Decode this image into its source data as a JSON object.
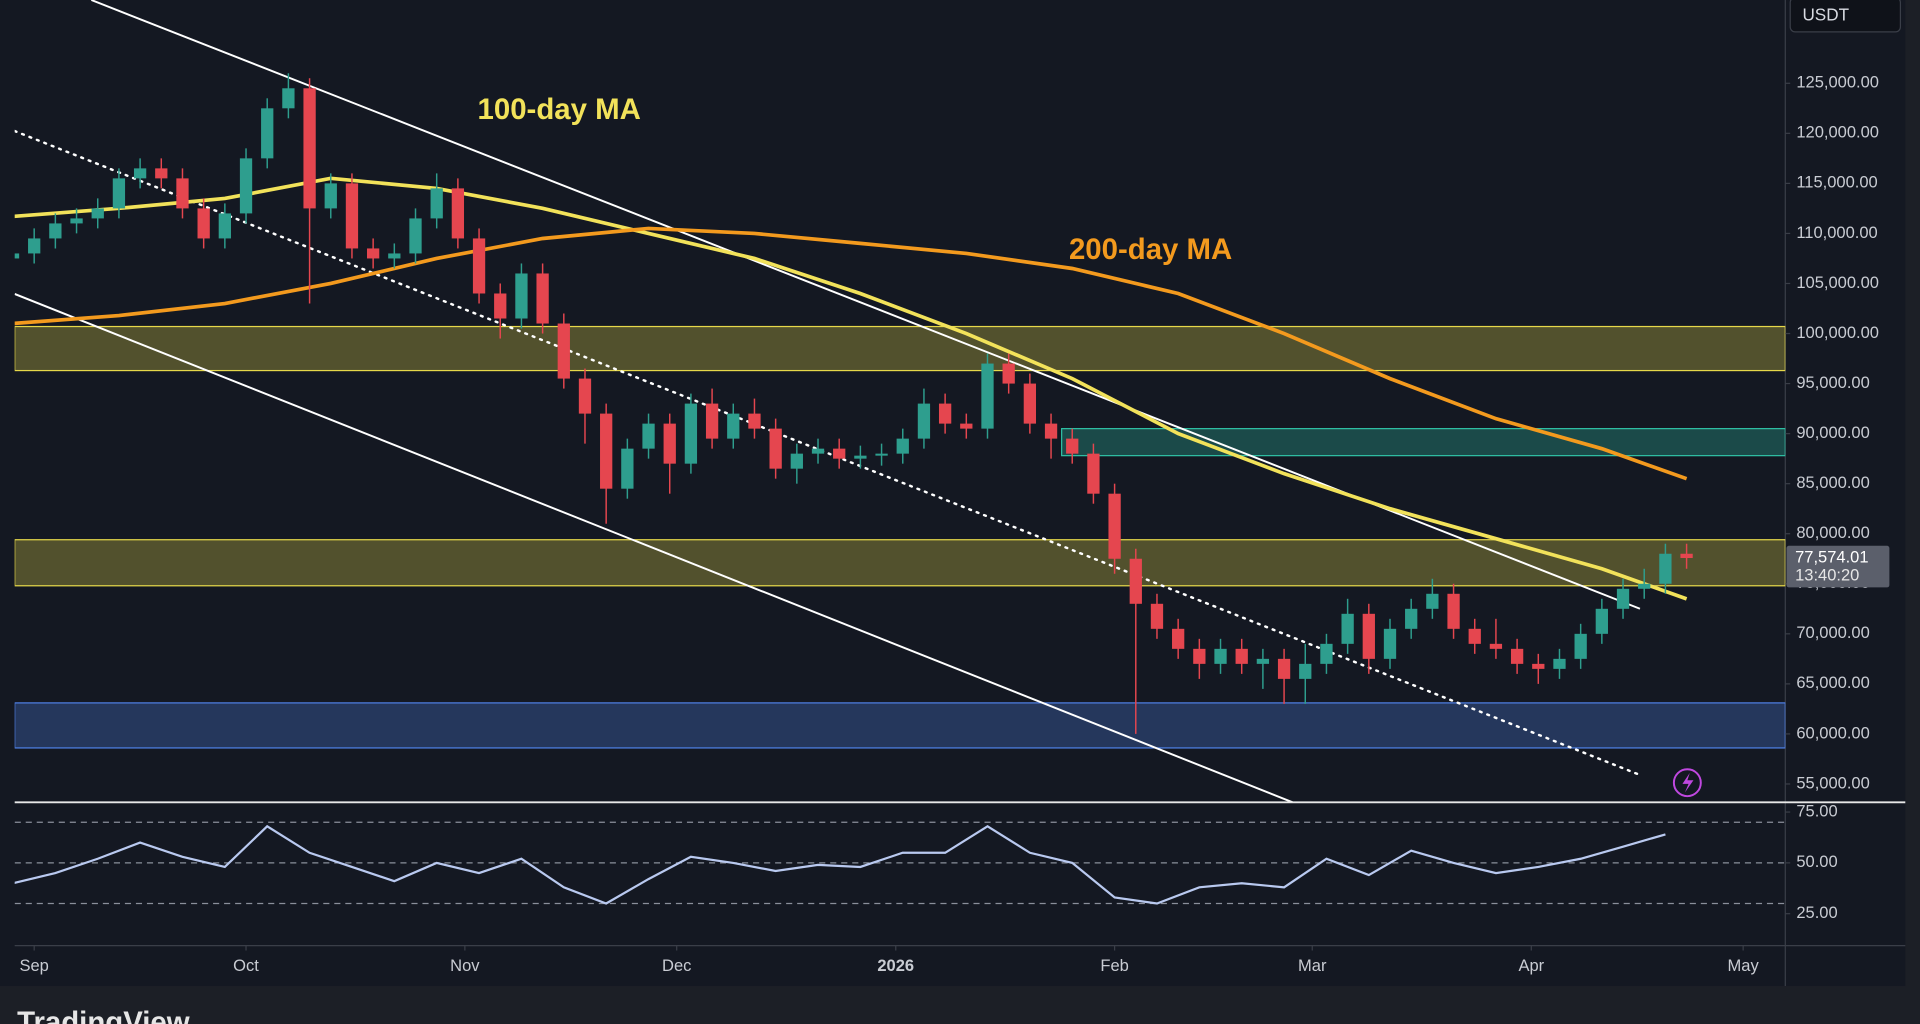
{
  "header": {
    "currency": "USDT",
    "watermark": "TradingView"
  },
  "chart_data": [
    {
      "type": "candlestick",
      "x": [
        0,
        1,
        2,
        3,
        4,
        5,
        6,
        7,
        8,
        9,
        10,
        11,
        12,
        13,
        14,
        15,
        16,
        17,
        18,
        19,
        20,
        21,
        22,
        23,
        24,
        25,
        26,
        27,
        28,
        29,
        30,
        31,
        32,
        33,
        34,
        35,
        36,
        37,
        38,
        39,
        40,
        41,
        42,
        43,
        44,
        45,
        46,
        47,
        48,
        49,
        50,
        51,
        52,
        53,
        54,
        55,
        56,
        57,
        58,
        59,
        60,
        61,
        62,
        63,
        64,
        65,
        66,
        67,
        68,
        69,
        70,
        71,
        72,
        73,
        74,
        75,
        76,
        77,
        78,
        79
      ],
      "open": [
        107500,
        108000,
        109500,
        111000,
        111500,
        112500,
        115500,
        116500,
        115500,
        112500,
        109500,
        112000,
        117500,
        122500,
        124500,
        112500,
        115000,
        108500,
        107500,
        108000,
        111500,
        114500,
        109500,
        104000,
        101500,
        106000,
        101000,
        95500,
        92000,
        84500,
        88500,
        91000,
        87000,
        93000,
        89500,
        92000,
        90500,
        86500,
        88000,
        88500,
        87500,
        87800,
        88000,
        89500,
        93000,
        91000,
        90500,
        97000,
        95000,
        91000,
        89500,
        88000,
        84000,
        77500,
        73000,
        70500,
        68500,
        67000,
        68500,
        67000,
        67500,
        65500,
        67000,
        69000,
        72000,
        67500,
        70500,
        72500,
        74000,
        70500,
        69000,
        68500,
        67000,
        66500,
        67500,
        70000,
        72500,
        74500,
        75000,
        78000
      ],
      "high": [
        109000,
        110500,
        112000,
        112500,
        113500,
        116500,
        117500,
        117500,
        116500,
        113500,
        113000,
        118500,
        123500,
        126000,
        125500,
        116000,
        116000,
        109500,
        109000,
        112500,
        116000,
        115500,
        110500,
        105000,
        107000,
        107000,
        102000,
        96500,
        93000,
        89500,
        92000,
        92000,
        94000,
        94500,
        93000,
        93500,
        91500,
        89000,
        89500,
        89500,
        88800,
        89000,
        90500,
        94500,
        94000,
        92000,
        98000,
        98000,
        96000,
        92000,
        90500,
        89000,
        85000,
        78500,
        74000,
        71500,
        69500,
        69500,
        69500,
        68500,
        68500,
        69000,
        70000,
        73500,
        73000,
        71500,
        73500,
        75500,
        75000,
        71500,
        71500,
        69500,
        68000,
        68500,
        71000,
        73500,
        75500,
        76500,
        79000,
        79000
      ],
      "low": [
        106500,
        107000,
        108500,
        110000,
        110500,
        111500,
        114500,
        114500,
        111500,
        108500,
        108500,
        111000,
        116500,
        121500,
        103000,
        111500,
        107500,
        106500,
        106500,
        107000,
        110500,
        108500,
        103000,
        99500,
        100500,
        100000,
        94500,
        89000,
        81000,
        83500,
        87500,
        84000,
        86000,
        88500,
        88500,
        89500,
        85500,
        85000,
        87000,
        86500,
        86500,
        86800,
        87000,
        88500,
        90000,
        89500,
        89500,
        94000,
        90000,
        87500,
        87000,
        83000,
        76000,
        60000,
        69500,
        67500,
        65500,
        66000,
        66000,
        64500,
        63000,
        63000,
        66000,
        68000,
        66000,
        66500,
        69500,
        71500,
        69500,
        68000,
        67500,
        66000,
        65000,
        65500,
        66500,
        69000,
        71500,
        73500,
        74000,
        76500
      ],
      "close": [
        108000,
        109500,
        111000,
        111500,
        112500,
        115500,
        116500,
        115500,
        112500,
        109500,
        112000,
        117500,
        122500,
        124500,
        112500,
        115000,
        108500,
        107500,
        108000,
        111500,
        114500,
        109500,
        104000,
        101500,
        106000,
        101000,
        95500,
        92000,
        84500,
        88500,
        91000,
        87000,
        93000,
        89500,
        92000,
        90500,
        86500,
        88000,
        88500,
        87500,
        87800,
        88000,
        89500,
        93000,
        91000,
        90500,
        97000,
        95000,
        91000,
        89500,
        88000,
        84000,
        77500,
        73000,
        70500,
        68500,
        67000,
        68500,
        67000,
        67500,
        65500,
        67000,
        69000,
        72000,
        67500,
        70500,
        72500,
        74000,
        70500,
        69000,
        68500,
        67000,
        66500,
        67500,
        70000,
        72500,
        74500,
        75000,
        78000,
        77574.01
      ],
      "up_color": "#2e9e8e",
      "down_color": "#e5464f",
      "xlim": [
        0.08,
        83.66
      ],
      "xticks": [
        {
          "value": 1,
          "label": "Sep"
        },
        {
          "value": 11,
          "label": "Oct"
        },
        {
          "value": 21.33,
          "label": "Nov"
        },
        {
          "value": 31.33,
          "label": "Dec"
        },
        {
          "value": 41.67,
          "label": "2026"
        },
        {
          "value": 52,
          "label": "Feb"
        },
        {
          "value": 61.33,
          "label": "Mar"
        },
        {
          "value": 71.67,
          "label": "Apr"
        },
        {
          "value": 81.67,
          "label": "May"
        }
      ],
      "ylim": [
        53170,
        133320
      ],
      "yticks": [
        {
          "value": 55000,
          "label": "55,000.00"
        },
        {
          "value": 60000,
          "label": "60,000.00"
        },
        {
          "value": 65000,
          "label": "65,000.00"
        },
        {
          "value": 70000,
          "label": "70,000.00"
        },
        {
          "value": 75000,
          "label": "75,000.00"
        },
        {
          "value": 80000,
          "label": "80,000.00"
        },
        {
          "value": 85000,
          "label": "85,000.00"
        },
        {
          "value": 90000,
          "label": "90,000.00"
        },
        {
          "value": 95000,
          "label": "95,000.00"
        },
        {
          "value": 100000,
          "label": "100,000.00"
        },
        {
          "value": 105000,
          "label": "105,000.00"
        },
        {
          "value": 110000,
          "label": "110,000.00"
        },
        {
          "value": 115000,
          "label": "115,000.00"
        },
        {
          "value": 120000,
          "label": "120,000.00"
        },
        {
          "value": 125000,
          "label": "125,000.00"
        }
      ],
      "lines": [
        {
          "name": "100-day MA",
          "color": "#f2e25a",
          "x": [
            0,
            5,
            10,
            15,
            20,
            25,
            30,
            35,
            40,
            45,
            50,
            55,
            60,
            65,
            70,
            75,
            79
          ],
          "values": [
            111700,
            112500,
            113500,
            115500,
            114500,
            112500,
            110000,
            107500,
            104000,
            100000,
            95500,
            90000,
            86000,
            82500,
            79500,
            76500,
            73500
          ]
        },
        {
          "name": "200-day MA",
          "color": "#f39a1e",
          "x": [
            0,
            5,
            10,
            15,
            20,
            25,
            30,
            35,
            40,
            45,
            50,
            55,
            60,
            65,
            70,
            75,
            79
          ],
          "values": [
            101000,
            101800,
            103000,
            105000,
            107500,
            109500,
            110500,
            110000,
            109000,
            108000,
            106500,
            104000,
            100000,
            95500,
            91500,
            88500,
            85500
          ]
        }
      ],
      "zones": [
        {
          "lo": 96300,
          "hi": 100700,
          "color": "#e6d84a"
        },
        {
          "lo": 74800,
          "hi": 79400,
          "color": "#e6d84a"
        },
        {
          "lo": 87800,
          "hi": 90500,
          "from": 49.5,
          "color": "#2fc0a5"
        },
        {
          "lo": 58600,
          "hi": 63100,
          "color": "#4f80e6"
        }
      ],
      "trendlines": [
        {
          "x": [
            3.7,
            76.8
          ],
          "values": [
            133320,
            72500
          ],
          "color": "#ffffff"
        },
        {
          "x": [
            0.08,
            60.4
          ],
          "values": [
            103950,
            53170
          ],
          "color": "#ffffff"
        },
        {
          "x": [
            0.08,
            76.7
          ],
          "values": [
            120230,
            55985
          ],
          "color": "#ffffff",
          "dashed": true
        }
      ],
      "last_price": {
        "value": 77574.01,
        "label": "77,574.01"
      },
      "countdown": "13:40:20"
    },
    {
      "type": "line",
      "x": [
        0,
        2,
        4,
        6,
        8,
        10,
        12,
        14,
        16,
        18,
        20,
        22,
        24,
        26,
        28,
        30,
        32,
        34,
        36,
        38,
        40,
        42,
        44,
        46,
        48,
        50,
        52,
        54,
        56,
        58,
        60,
        62,
        64,
        66,
        68,
        70,
        72,
        74,
        76,
        78
      ],
      "values": [
        40,
        45,
        52,
        60,
        53,
        48,
        68,
        55,
        48,
        41,
        50,
        45,
        52,
        38,
        30,
        42,
        53,
        50,
        46,
        49,
        48,
        55,
        55,
        68,
        55,
        50,
        33,
        30,
        38,
        40,
        38,
        52,
        44,
        56,
        50,
        45,
        48,
        52,
        58,
        64
      ],
      "color": "#b9c9f0",
      "ylim": [
        9.3,
        79.8
      ],
      "yticks": [
        {
          "value": 75,
          "label": "75.00"
        },
        {
          "value": 50,
          "label": "50.00"
        },
        {
          "value": 25,
          "label": "25.00"
        }
      ],
      "bands": [
        70,
        50,
        30
      ]
    }
  ]
}
